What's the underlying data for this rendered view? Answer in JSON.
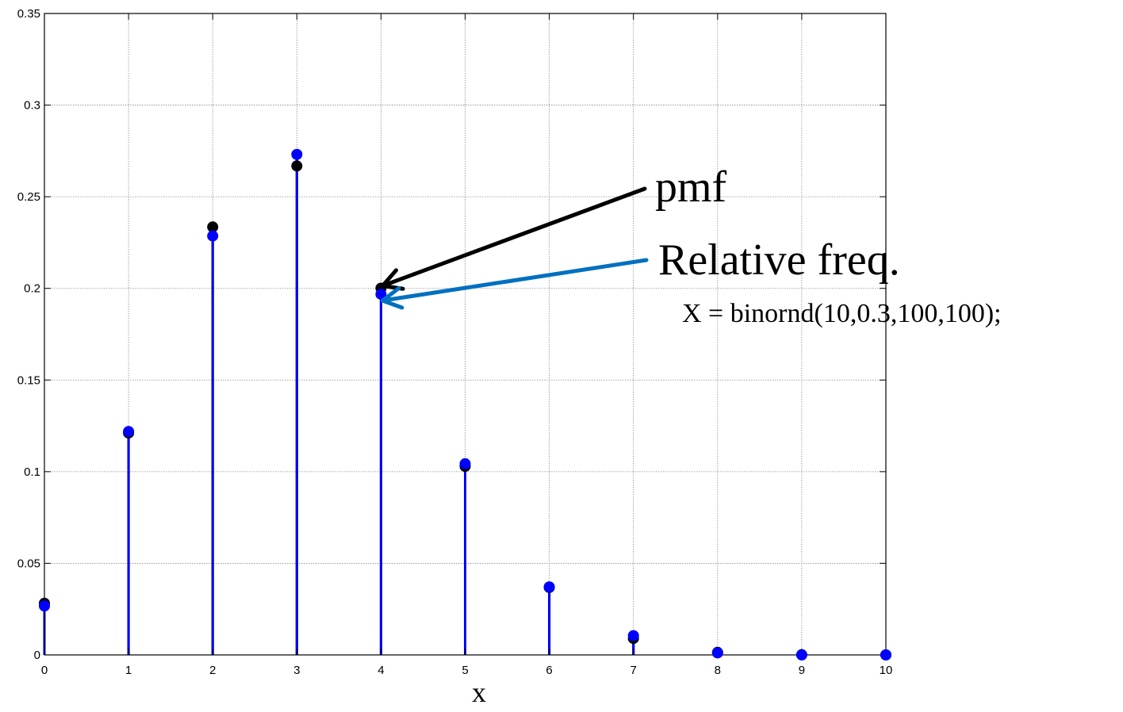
{
  "chart_data": {
    "type": "stem",
    "xlabel": "x",
    "ylabel": "",
    "title": "",
    "xlim": [
      0,
      10
    ],
    "ylim": [
      0,
      0.35
    ],
    "x_ticks": [
      "0",
      "1",
      "2",
      "3",
      "4",
      "5",
      "6",
      "7",
      "8",
      "9",
      "10"
    ],
    "y_ticks": [
      "0",
      "0.05",
      "0.1",
      "0.15",
      "0.2",
      "0.25",
      "0.3",
      "0.35"
    ],
    "grid": true,
    "x": [
      0,
      1,
      2,
      3,
      4,
      5,
      6,
      7,
      8,
      9,
      10
    ],
    "series": [
      {
        "color": "#000000",
        "values": [
          0.0282,
          0.1211,
          0.2335,
          0.2668,
          0.2001,
          0.1029,
          0.0368,
          0.009,
          0.0014,
          0.0001,
          0.0
        ]
      },
      {
        "color": "#0000ff",
        "values": [
          0.0267,
          0.1219,
          0.2286,
          0.2731,
          0.1968,
          0.1043,
          0.0371,
          0.0105,
          0.0011,
          0.0,
          0.0
        ]
      }
    ],
    "annotations": [
      {
        "text": "pmf",
        "arrow_color": "#000000"
      },
      {
        "text": "Relative freq.",
        "arrow_color": "#0070c0"
      },
      {
        "text": "X = binornd(10,0.3,100,100);"
      }
    ]
  }
}
